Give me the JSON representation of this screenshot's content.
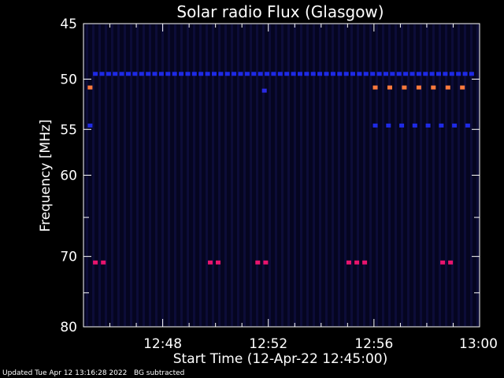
{
  "chart_data": {
    "type": "heatmap",
    "title": "Solar radio Flux (Glasgow)",
    "xlabel": "Start Time (12-Apr-22 12:45:00)",
    "ylabel": "Frequency [MHz]",
    "x_units": "minutes after 12:45:00",
    "xlim": [
      0,
      15
    ],
    "ylim": [
      45,
      80
    ],
    "y_ticks": [
      45,
      50,
      55,
      60,
      70,
      80
    ],
    "x_ticks": [
      {
        "minute": 3,
        "label": "12:48"
      },
      {
        "minute": 7,
        "label": "12:52"
      },
      {
        "minute": 11,
        "label": "12:56"
      },
      {
        "minute": 15,
        "label": "13:00"
      }
    ],
    "background_color": "#050520",
    "channels": [
      {
        "frequency": 49.5,
        "color": "#1e2ae6",
        "segments": [
          {
            "start": 0.45,
            "end": 14.9,
            "step": 0.25
          }
        ]
      },
      {
        "frequency": 50.8,
        "color": "#ff7a3c",
        "segments": [
          {
            "start": 0.25,
            "end": 0.25,
            "step": 1
          },
          {
            "start": 11.05,
            "end": 14.6,
            "step": 0.55
          }
        ]
      },
      {
        "frequency": 51.1,
        "color": "#2a2ae6",
        "segments": [
          {
            "start": 6.85,
            "end": 6.85,
            "step": 1
          }
        ]
      },
      {
        "frequency": 54.6,
        "color": "#1e2ae6",
        "segments": [
          {
            "start": 0.25,
            "end": 0.25,
            "step": 1
          },
          {
            "start": 11.05,
            "end": 14.6,
            "step": 0.5
          }
        ]
      },
      {
        "frequency": 70.8,
        "color": "#e8146e",
        "segments": [
          {
            "start": 0.45,
            "end": 0.75,
            "step": 0.3
          },
          {
            "start": 4.8,
            "end": 5.1,
            "step": 0.3
          },
          {
            "start": 6.6,
            "end": 6.9,
            "step": 0.3
          },
          {
            "start": 10.05,
            "end": 10.65,
            "step": 0.3
          },
          {
            "start": 13.6,
            "end": 13.9,
            "step": 0.3
          }
        ]
      }
    ]
  },
  "footer": {
    "updated": "Updated Tue Apr 12 13:16:28 2022",
    "bg_note": "BG subtracted"
  }
}
